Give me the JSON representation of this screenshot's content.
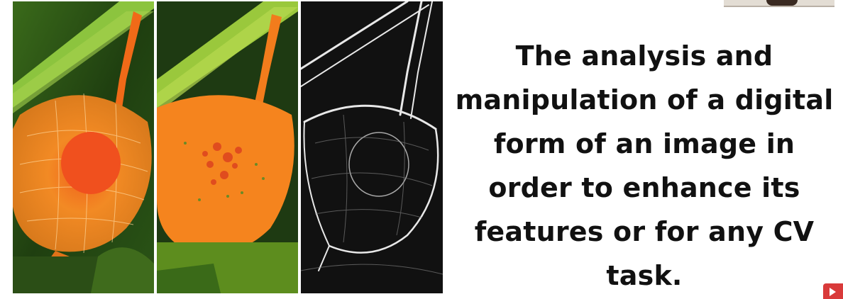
{
  "slide": {
    "caption_lines": [
      "The analysis and",
      "manipulation of a digital",
      "form of an image in",
      "order to enhance its",
      "features or for any CV",
      "task."
    ]
  },
  "panels": [
    {
      "id": "original",
      "icon": "physalis-photo"
    },
    {
      "id": "segmented",
      "icon": "physalis-segmented"
    },
    {
      "id": "edges",
      "icon": "physalis-edge-map"
    }
  ],
  "colors": {
    "background": "#ffffff",
    "text": "#111111",
    "leaf_green": "#8ac43c",
    "husk_orange": "#f07a1a",
    "dark_green": "#1e3a12",
    "corner_button": "#d93a3a"
  }
}
